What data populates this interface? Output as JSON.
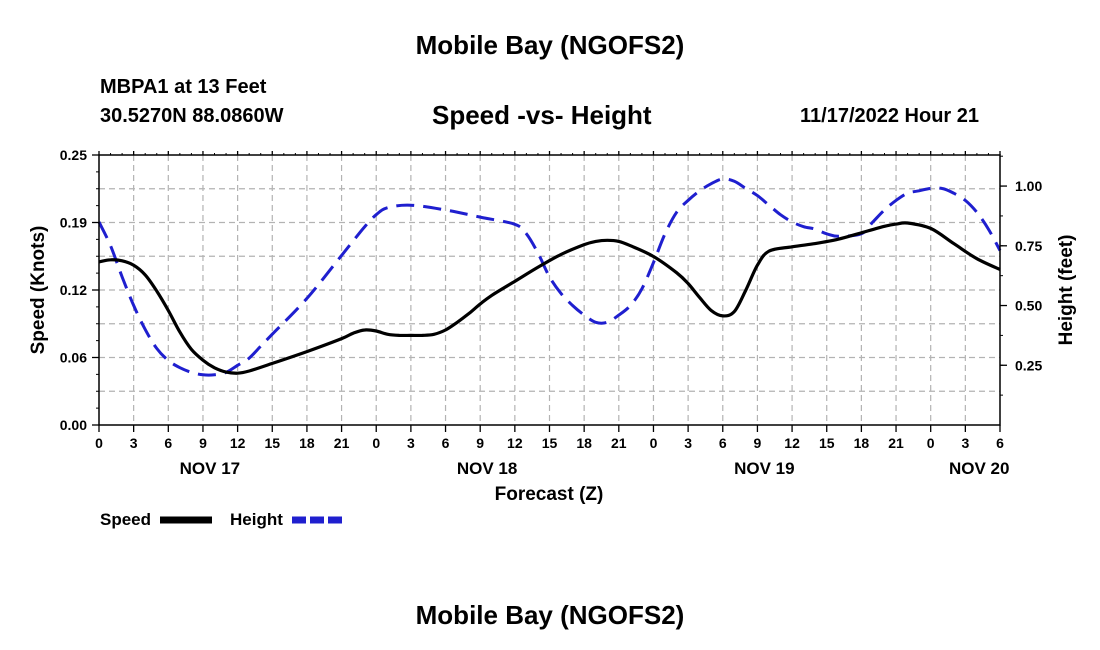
{
  "header": {
    "title": "Mobile Bay (NGOFS2)",
    "station": "MBPA1 at 13 Feet",
    "coords": "30.5270N  88.0860W",
    "subtitle": "Speed -vs- Height",
    "datetime": "11/17/2022 Hour 21"
  },
  "footer": {
    "title": "Mobile Bay (NGOFS2)"
  },
  "chart_data": {
    "type": "line",
    "title": "Speed -vs- Height",
    "xlabel": "Forecast (Z)",
    "ylabel": "Speed (Knots)",
    "y2label": "Height (feet)",
    "xlim": [
      0,
      78
    ],
    "ylim": [
      0,
      0.25
    ],
    "y2lim": [
      0,
      1.13
    ],
    "x_ticks": [
      0,
      3,
      6,
      9,
      12,
      15,
      18,
      21,
      24,
      27,
      30,
      33,
      36,
      39,
      42,
      45,
      48,
      51,
      54,
      57,
      60,
      63,
      66,
      69,
      72,
      75,
      78
    ],
    "x_tick_labels": [
      "0",
      "3",
      "6",
      "9",
      "12",
      "15",
      "18",
      "21",
      "0",
      "3",
      "6",
      "9",
      "12",
      "15",
      "18",
      "21",
      "0",
      "3",
      "6",
      "9",
      "12",
      "15",
      "18",
      "21",
      "0",
      "3",
      "6"
    ],
    "y_ticks": [
      0,
      0.0625,
      0.125,
      0.1875,
      0.25
    ],
    "y_tick_labels": [
      "0.00",
      "0.06",
      "0.12",
      "0.19",
      "0.25"
    ],
    "y2_ticks": [
      0.25,
      0.5,
      0.75,
      1.0
    ],
    "y2_tick_labels": [
      "0.25",
      "0.50",
      "0.75",
      "1.00"
    ],
    "date_labels": [
      {
        "x": 9.6,
        "label": "NOV 17"
      },
      {
        "x": 33.6,
        "label": "NOV 18"
      },
      {
        "x": 57.6,
        "label": "NOV 19"
      },
      {
        "x": 76.2,
        "label": "NOV 20"
      }
    ],
    "grid": true,
    "legend": [
      {
        "name": "Speed",
        "color": "#000000",
        "style": "solid"
      },
      {
        "name": "Height",
        "color": "#1f1fcf",
        "style": "dashed"
      }
    ],
    "series": [
      {
        "name": "Speed",
        "axis": "left",
        "color": "#000000",
        "x": [
          0,
          1,
          2,
          3,
          4,
          5,
          6,
          7,
          8,
          9,
          10,
          11,
          12,
          13,
          15,
          18,
          21,
          22,
          23,
          24,
          25,
          26,
          27,
          28,
          29,
          30,
          31,
          32,
          33,
          34,
          36,
          38,
          40,
          42,
          43,
          44,
          45,
          46,
          48,
          50,
          51,
          52,
          53,
          54,
          55,
          56,
          57,
          58,
          60,
          62,
          64,
          66,
          68,
          69,
          70,
          72,
          74,
          76,
          78
        ],
        "y": [
          0.151,
          0.153,
          0.152,
          0.148,
          0.139,
          0.124,
          0.106,
          0.086,
          0.07,
          0.06,
          0.053,
          0.049,
          0.048,
          0.05,
          0.057,
          0.068,
          0.08,
          0.085,
          0.088,
          0.087,
          0.084,
          0.083,
          0.083,
          0.083,
          0.084,
          0.088,
          0.095,
          0.103,
          0.112,
          0.12,
          0.133,
          0.146,
          0.158,
          0.167,
          0.17,
          0.171,
          0.17,
          0.166,
          0.156,
          0.141,
          0.131,
          0.118,
          0.106,
          0.101,
          0.105,
          0.125,
          0.148,
          0.161,
          0.165,
          0.168,
          0.172,
          0.178,
          0.184,
          0.186,
          0.187,
          0.182,
          0.168,
          0.154,
          0.144
        ]
      },
      {
        "name": "Height",
        "axis": "right",
        "color": "#1f1fcf",
        "x": [
          0,
          1,
          2,
          3,
          4,
          5,
          6,
          7,
          8,
          9,
          10,
          11,
          12,
          13,
          14,
          15,
          18,
          21,
          22,
          23,
          24,
          25,
          27,
          30,
          33,
          36,
          37,
          38,
          39,
          40,
          41,
          42,
          43,
          44,
          45,
          46,
          47,
          48,
          49,
          50,
          51,
          52,
          53,
          54,
          55,
          56,
          57,
          58,
          59,
          60,
          61,
          62,
          63,
          64,
          66,
          67,
          68,
          69,
          70,
          71,
          72,
          73,
          74,
          75,
          76,
          77,
          78
        ],
        "y": [
          0.85,
          0.75,
          0.62,
          0.5,
          0.4,
          0.32,
          0.27,
          0.24,
          0.22,
          0.21,
          0.21,
          0.22,
          0.25,
          0.28,
          0.33,
          0.38,
          0.53,
          0.71,
          0.77,
          0.83,
          0.88,
          0.91,
          0.92,
          0.9,
          0.87,
          0.84,
          0.8,
          0.72,
          0.62,
          0.55,
          0.5,
          0.46,
          0.43,
          0.43,
          0.46,
          0.5,
          0.57,
          0.68,
          0.8,
          0.89,
          0.94,
          0.98,
          1.01,
          1.03,
          1.02,
          0.99,
          0.96,
          0.92,
          0.88,
          0.85,
          0.83,
          0.82,
          0.8,
          0.79,
          0.8,
          0.85,
          0.9,
          0.94,
          0.97,
          0.98,
          0.99,
          0.99,
          0.97,
          0.94,
          0.89,
          0.82,
          0.73
        ]
      }
    ]
  }
}
